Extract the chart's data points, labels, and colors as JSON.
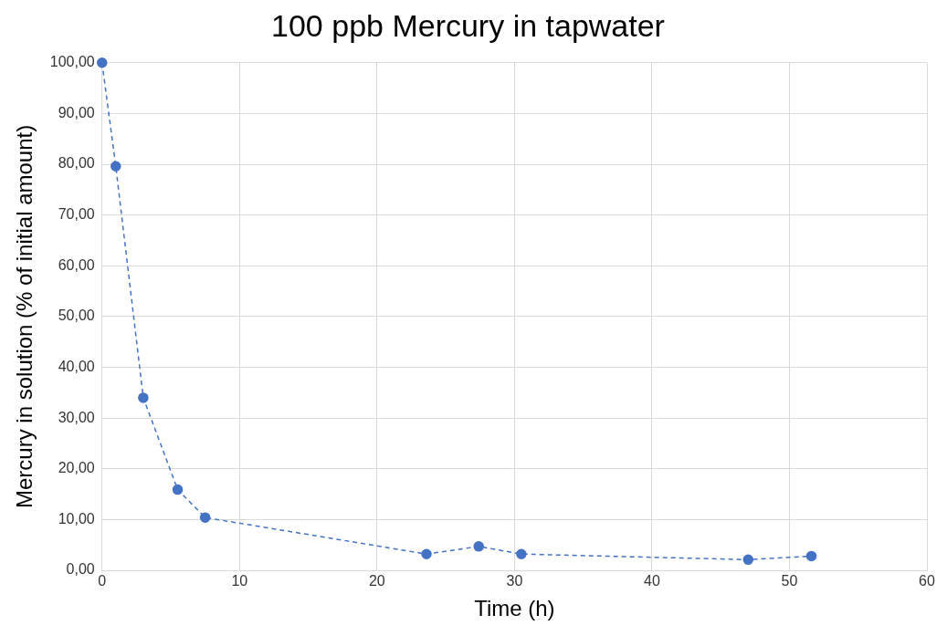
{
  "chart_data": {
    "type": "line",
    "title": "100 ppb Mercury in tapwater",
    "xlabel": "Time (h)",
    "ylabel": "Mercury in solution (% of initial amount)",
    "x": [
      0,
      1,
      3,
      5.5,
      7.5,
      23.6,
      27.4,
      30.5,
      47,
      51.6
    ],
    "series": [
      {
        "color": "#4472c4",
        "values": [
          100,
          79.6,
          34,
          15.9,
          10.4,
          3.2,
          4.7,
          3.2,
          2.1,
          2.8
        ]
      }
    ],
    "xlim": [
      0,
      60
    ],
    "xticks": [
      0,
      10,
      20,
      30,
      40,
      50,
      60
    ],
    "ylim": [
      0,
      100
    ],
    "yticks": [
      {
        "value": 0,
        "label": "0,00"
      },
      {
        "value": 10,
        "label": "10,00"
      },
      {
        "value": 20,
        "label": "20,00"
      },
      {
        "value": 30,
        "label": "30,00"
      },
      {
        "value": 40,
        "label": "40,00"
      },
      {
        "value": 50,
        "label": "50,00"
      },
      {
        "value": 60,
        "label": "60,00"
      },
      {
        "value": 70,
        "label": "70,00"
      },
      {
        "value": 80,
        "label": "80,00"
      },
      {
        "value": 90,
        "label": "90,00"
      },
      {
        "value": 100,
        "label": "100,00"
      }
    ],
    "grid": true,
    "legend": false,
    "marker": "circle",
    "line_style": "dashed"
  }
}
